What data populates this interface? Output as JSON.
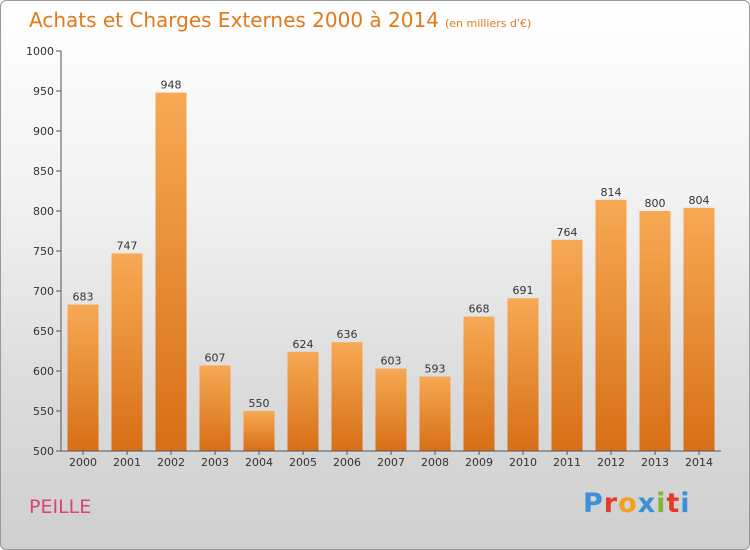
{
  "header": {
    "title": "Achats et Charges Externes 2000 à 2014",
    "subtitle": "(en milliers d'€)"
  },
  "footer": {
    "town": "PEILLE",
    "brand_letters": [
      "P",
      "r",
      "o",
      "x",
      "i",
      "t",
      "i"
    ],
    "brand_colors": [
      "#3d8fd6",
      "#e53b2c",
      "#f4a21c",
      "#3d8fd6",
      "#7ab73a",
      "#e53b2c",
      "#3d8fd6"
    ]
  },
  "chart_data": {
    "type": "bar",
    "title": "Achats et Charges Externes 2000 à 2014",
    "subtitle": "(en milliers d'€)",
    "xlabel": "",
    "ylabel": "",
    "categories": [
      "2000",
      "2001",
      "2002",
      "2003",
      "2004",
      "2005",
      "2006",
      "2007",
      "2008",
      "2009",
      "2010",
      "2011",
      "2012",
      "2013",
      "2014"
    ],
    "values": [
      683,
      747,
      948,
      607,
      550,
      624,
      636,
      603,
      593,
      668,
      691,
      764,
      814,
      800,
      804
    ],
    "ylim": [
      500,
      1000
    ],
    "yticks": [
      500,
      550,
      600,
      650,
      700,
      750,
      800,
      850,
      900,
      950,
      1000
    ],
    "grid": false,
    "colors": {
      "bar_light": "#f7a954",
      "bar_dark": "#d76f17",
      "text": "#e07a1b"
    }
  }
}
